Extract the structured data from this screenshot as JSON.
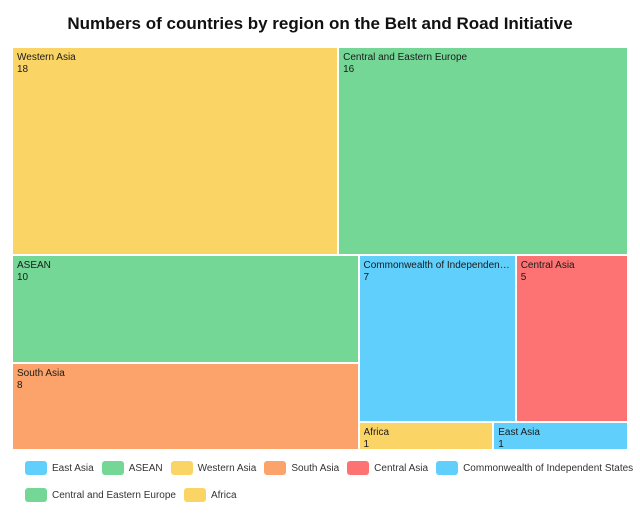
{
  "chart_data": {
    "type": "treemap",
    "title": "Numbers of countries by region on the Belt and Road Initiative",
    "data": [
      {
        "name": "Western Asia",
        "value": 18,
        "color": "#fad566"
      },
      {
        "name": "Central and Eastern Europe",
        "value": 16,
        "color": "#74d796"
      },
      {
        "name": "ASEAN",
        "value": 10,
        "color": "#74d796"
      },
      {
        "name": "South Asia",
        "value": 8,
        "color": "#fba36b"
      },
      {
        "name": "Commonwealth of Independent States",
        "value": 7,
        "color": "#60cffc"
      },
      {
        "name": "Central Asia",
        "value": 5,
        "color": "#fd7272"
      },
      {
        "name": "Africa",
        "value": 1,
        "color": "#fad566"
      },
      {
        "name": "East Asia",
        "value": 1,
        "color": "#60cffc"
      }
    ],
    "legend": [
      {
        "label": "East Asia",
        "color": "#60cffc"
      },
      {
        "label": "ASEAN",
        "color": "#74d796"
      },
      {
        "label": "Western Asia",
        "color": "#fad566"
      },
      {
        "label": "South Asia",
        "color": "#fba36b"
      },
      {
        "label": "Central Asia",
        "color": "#fd7272"
      },
      {
        "label": "Commonwealth of Independent States",
        "color": "#60cffc"
      },
      {
        "label": "Central and Eastern Europe",
        "color": "#74d796"
      },
      {
        "label": "Africa",
        "color": "#fad566"
      }
    ],
    "legend_position": "bottom"
  }
}
